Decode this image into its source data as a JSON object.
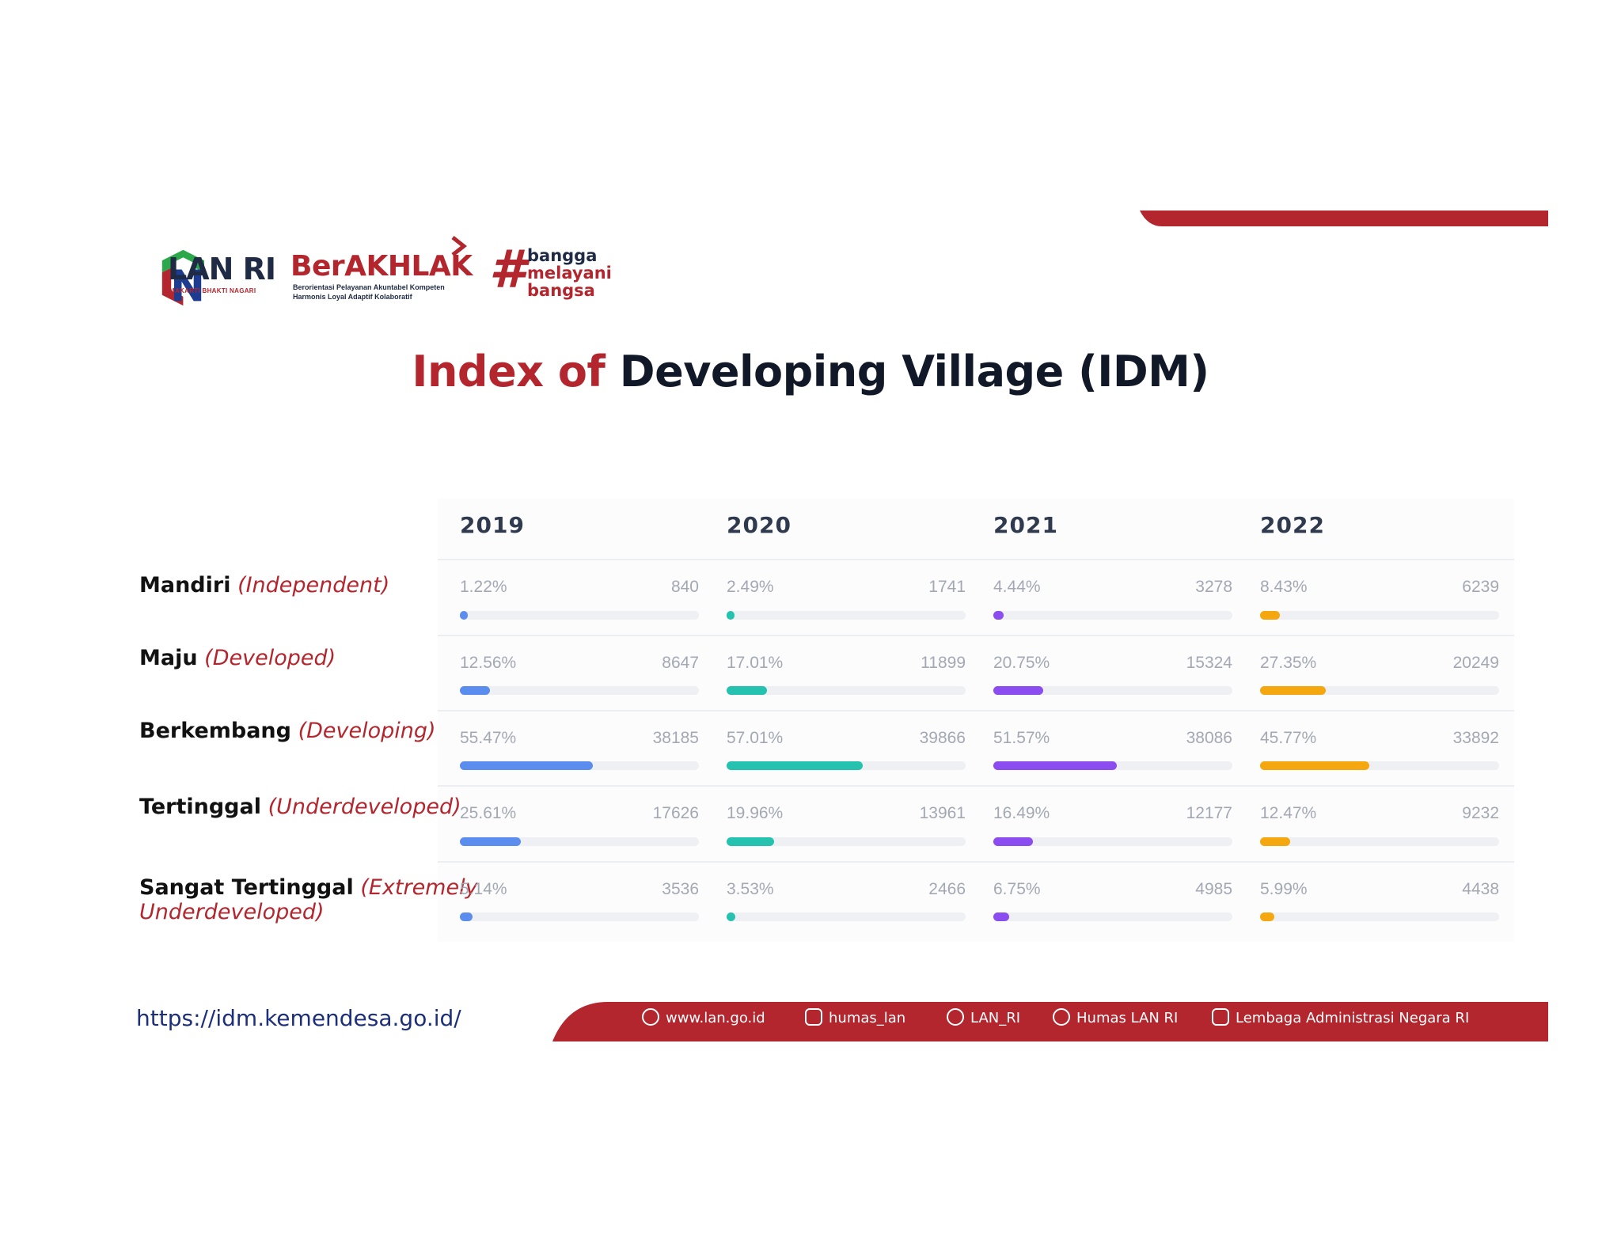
{
  "branding": {
    "lan_name": "LAN RI",
    "lan_tagline": "MAKARTI BHAKTI NAGARI",
    "berakhlak_name": "BerAKHLAK",
    "berakhlak_line1": "Berorientasi Pelayanan Akuntabel Kompeten",
    "berakhlak_line2": "Harmonis Loyal Adaptif Kolaboratif",
    "hashtag_symbol": "#",
    "hashtag_words": [
      "bangga",
      "melayani",
      "bangsa"
    ]
  },
  "colors": {
    "brand_red": "#b3262e",
    "series_2019": "#5b8def",
    "series_2020": "#26c2b0",
    "series_2021": "#8b4cf0",
    "series_2022": "#f5a70f"
  },
  "title": {
    "part1": "Index of",
    "part2": "Developing Village (IDM)"
  },
  "source_url": "https://idm.kemendesa.go.id/",
  "chart_data": {
    "type": "table",
    "columns": [
      "2019",
      "2020",
      "2021",
      "2022"
    ],
    "rows": [
      {
        "label": "Mandiri",
        "label_en": "(Independent)",
        "label_en2": "",
        "percent": [
          "1.22%",
          "2.49%",
          "4.44%",
          "8.43%"
        ],
        "count": [
          "840",
          "1741",
          "3278",
          "6239"
        ],
        "fill": [
          0.0122,
          0.0249,
          0.0444,
          0.0843
        ]
      },
      {
        "label": "Maju",
        "label_en": "(Developed)",
        "label_en2": "",
        "percent": [
          "12.56%",
          "17.01%",
          "20.75%",
          "27.35%"
        ],
        "count": [
          "8647",
          "11899",
          "15324",
          "20249"
        ],
        "fill": [
          0.1256,
          0.1701,
          0.2075,
          0.2735
        ]
      },
      {
        "label": "Berkembang",
        "label_en": "(Developing)",
        "label_en2": "",
        "percent": [
          "55.47%",
          "57.01%",
          "51.57%",
          "45.77%"
        ],
        "count": [
          "38185",
          "39866",
          "38086",
          "33892"
        ],
        "fill": [
          0.5547,
          0.5701,
          0.5157,
          0.4577
        ]
      },
      {
        "label": "Tertinggal",
        "label_en": "(Underdeveloped)",
        "label_en2": "",
        "percent": [
          "25.61%",
          "19.96%",
          "16.49%",
          "12.47%"
        ],
        "count": [
          "17626",
          "13961",
          "12177",
          "9232"
        ],
        "fill": [
          0.2561,
          0.1996,
          0.1649,
          0.1247
        ]
      },
      {
        "label": "Sangat Tertinggal",
        "label_en": "(Extremely",
        "label_en2": "Underdeveloped)",
        "percent": [
          "5.14%",
          "3.53%",
          "6.75%",
          "5.99%"
        ],
        "count": [
          "3536",
          "2466",
          "4985",
          "4438"
        ],
        "fill": [
          0.0514,
          0.0353,
          0.0675,
          0.0599
        ]
      }
    ]
  },
  "footer": {
    "items": [
      {
        "icon": "globe-icon",
        "label": "www.lan.go.id"
      },
      {
        "icon": "instagram-icon",
        "label": "humas_lan"
      },
      {
        "icon": "twitter-icon",
        "label": "LAN_RI"
      },
      {
        "icon": "facebook-icon",
        "label": "Humas LAN RI"
      },
      {
        "icon": "youtube-icon",
        "label": "Lembaga Administrasi Negara RI"
      }
    ]
  }
}
